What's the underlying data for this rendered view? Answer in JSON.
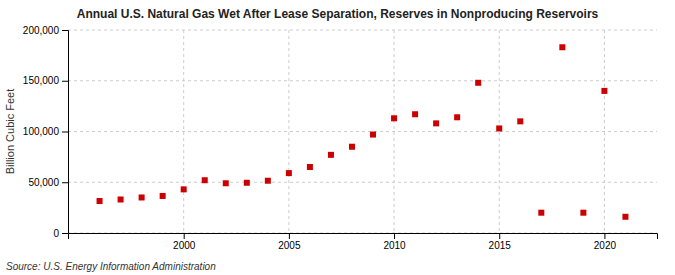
{
  "chart_data": {
    "type": "scatter",
    "title": "Annual U.S. Natural Gas Wet After Lease Separation, Reserves in Nonproducing Reservoirs",
    "ylabel": "Billion Cubic Feet",
    "source": "Source: U.S. Energy Information Administration",
    "x": [
      1996,
      1997,
      1998,
      1999,
      2000,
      2001,
      2002,
      2003,
      2004,
      2005,
      2006,
      2007,
      2008,
      2009,
      2010,
      2011,
      2012,
      2013,
      2014,
      2015,
      2016,
      2017,
      2018,
      2019,
      2020,
      2021
    ],
    "values": [
      31500,
      33000,
      35000,
      36500,
      43000,
      52000,
      49000,
      49500,
      51500,
      59000,
      65000,
      77000,
      85000,
      97000,
      113000,
      117000,
      108000,
      114000,
      148000,
      103000,
      110000,
      20000,
      183000,
      20000,
      140000,
      16000
    ],
    "color": "#cc0000",
    "marker": "square",
    "xlim": [
      1994.5,
      2022.5
    ],
    "xticks": [
      2000,
      2005,
      2010,
      2015,
      2020
    ],
    "ylim": [
      0,
      200000
    ],
    "yticks": [
      0,
      {
        "value": 50000,
        "label": "50,000"
      },
      {
        "value": 100000,
        "label": "100,000"
      },
      {
        "value": 150000,
        "label": "150,000"
      },
      {
        "value": 200000,
        "label": "200,000"
      }
    ],
    "grid": true
  }
}
